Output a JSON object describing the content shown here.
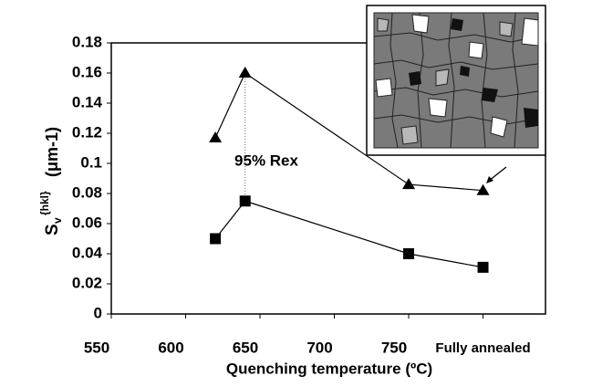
{
  "chart_data": {
    "type": "line",
    "x_label": "Quenching temperature (ºC)",
    "y_label": {
      "symbol": "S",
      "subscript": "v",
      "superscript": "{hkl}",
      "unit": "(μm-1)"
    },
    "annotation": "95% Rex",
    "x": [
      620,
      640,
      750,
      800
    ],
    "series": [
      {
        "marker": "triangle",
        "color": "#000000",
        "values": [
          0.117,
          0.16,
          0.086,
          0.082
        ]
      },
      {
        "marker": "square",
        "color": "#000000",
        "values": [
          0.05,
          0.075,
          0.04,
          0.031
        ]
      }
    ],
    "xlim": [
      550,
      842
    ],
    "xticks": [
      550,
      600,
      650,
      700,
      750,
      {
        "value": 800,
        "label": "Fully annealed"
      }
    ],
    "ylim": [
      0,
      0.18
    ],
    "yticks": [
      0,
      0.02,
      0.04,
      0.06,
      0.08,
      0.1,
      0.12,
      0.14,
      0.16,
      0.18
    ],
    "grid": false
  }
}
